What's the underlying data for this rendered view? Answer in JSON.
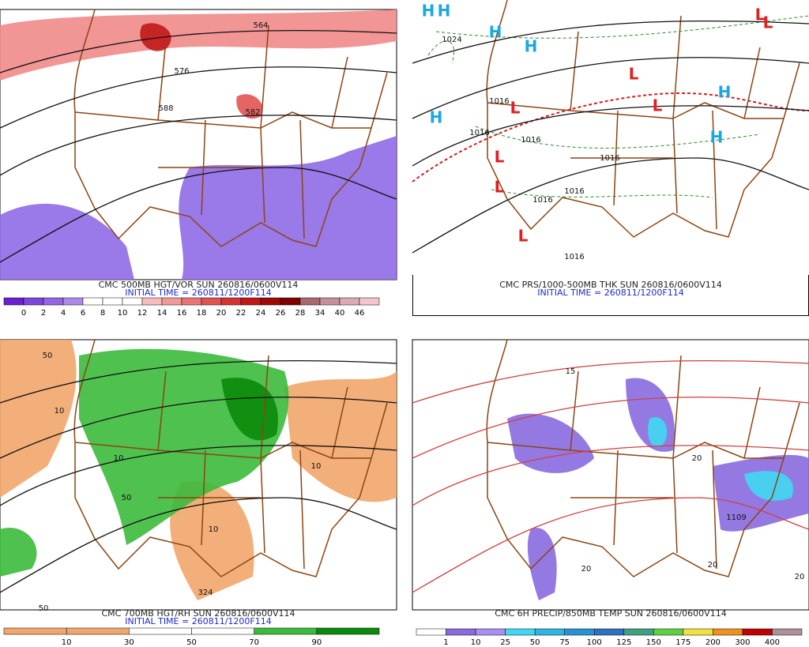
{
  "panels": [
    {
      "title": "CMC 500MB HGT/VOR SUN 260816/0600V114",
      "initial_time": "INITIAL TIME = 260811/1200F114",
      "colorbar": {
        "labels": [
          "0",
          "2",
          "4",
          "6",
          "8",
          "10",
          "12",
          "14",
          "16",
          "18",
          "20",
          "22",
          "24",
          "26",
          "28",
          "34",
          "40",
          "46"
        ],
        "colors": [
          "#6a1fd0",
          "#7e45dc",
          "#9466e4",
          "#ab8aec",
          "#ffffff",
          "#ffffff",
          "#ffffff",
          "#f6bcbc",
          "#f09a9a",
          "#e97676",
          "#e25454",
          "#d63434",
          "#c01818",
          "#a00808",
          "#800000",
          "#a86872",
          "#c4909a",
          "#dcaab4",
          "#f2c6ce"
        ]
      },
      "map_labels": [
        "564",
        "588",
        "576",
        "582"
      ]
    },
    {
      "title": "CMC PRS/1000-500MB THK SUN 260816/0600V114",
      "initial_time": "INITIAL TIME = 260811/1200F114",
      "map_labels": [
        "H",
        "H",
        "H",
        "H",
        "H",
        "H",
        "H",
        "L",
        "L",
        "L",
        "L",
        "L",
        "L",
        "L",
        "L",
        "1024",
        "1016",
        "1016",
        "1016",
        "1016",
        "1016",
        "1016",
        "1016"
      ]
    },
    {
      "title": "CMC 700MB HGT/RH SUN 260816/0600V114",
      "initial_time": "INITIAL TIME = 260811/1200F114",
      "colorbar": {
        "labels": [
          "10",
          "30",
          "50",
          "70",
          "90"
        ],
        "colors": [
          "#f2a66c",
          "#f2a66c",
          "#ffffff",
          "#ffffff",
          "#3cba3c",
          "#0a8a0a"
        ]
      },
      "map_labels": [
        "50",
        "10",
        "10",
        "10",
        "50",
        "324",
        "50",
        "10"
      ]
    },
    {
      "title": "CMC 6H PRECIP/850MB TEMP SUN 260816/0600V114",
      "colorbar": {
        "labels": [
          "1",
          "10",
          "25",
          "50",
          "75",
          "100",
          "125",
          "150",
          "175",
          "200",
          "300",
          "400"
        ],
        "colors": [
          "#ffffff",
          "#8a6ae0",
          "#a890f0",
          "#40d8f0",
          "#30b4e6",
          "#2a92d4",
          "#3070c0",
          "#40a080",
          "#60d040",
          "#f0e040",
          "#f09020",
          "#c00000",
          "#b09098"
        ]
      },
      "map_labels": [
        "20",
        "20",
        "20",
        "20",
        "1109",
        "15"
      ]
    }
  ]
}
